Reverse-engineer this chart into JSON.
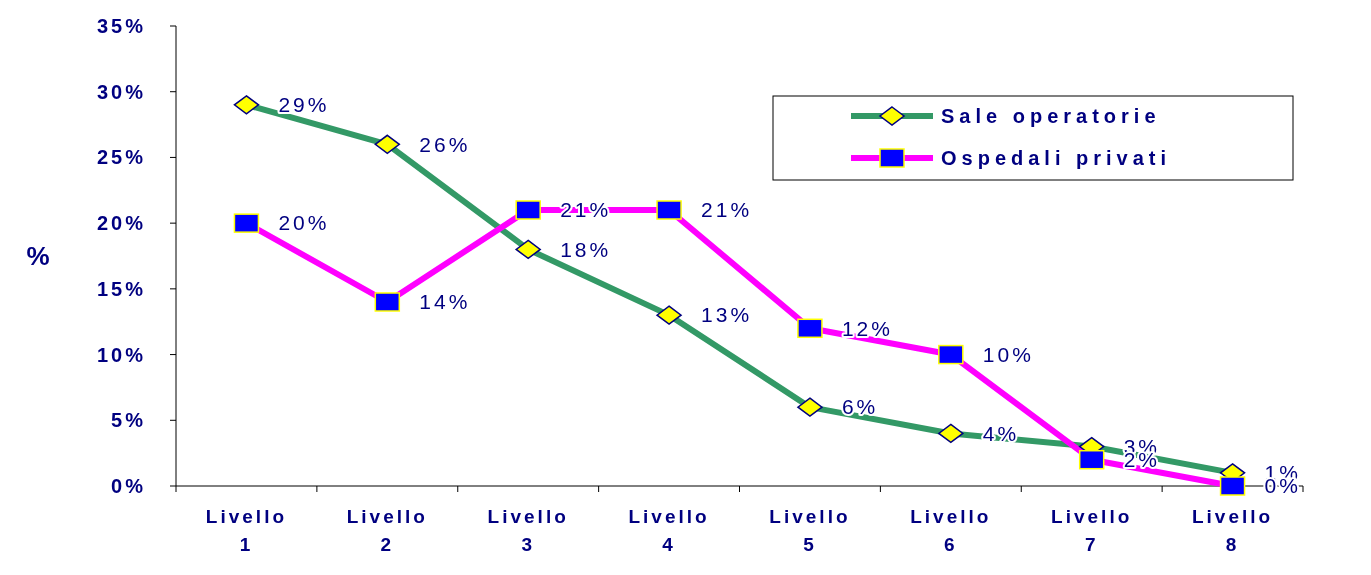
{
  "chart_data": {
    "type": "line",
    "ylabel": "%",
    "categories": [
      "Livello 1",
      "Livello 2",
      "Livello 3",
      "Livello 4",
      "Livello 5",
      "Livello 6",
      "Livello 7",
      "Livello 8"
    ],
    "series": [
      {
        "name": "Sale operatorie",
        "color": "#339966",
        "marker": "diamond",
        "values": [
          29,
          26,
          18,
          13,
          6,
          4,
          3,
          1
        ],
        "value_labels": [
          "29%",
          "26%",
          "18%",
          "13%",
          "6%",
          "4%",
          "3%",
          "1%"
        ]
      },
      {
        "name": "Ospedali privati",
        "color": "#ff00ff",
        "marker": "square",
        "values": [
          20,
          14,
          21,
          21,
          12,
          10,
          2,
          0
        ],
        "value_labels": [
          "20%",
          "14%",
          "21%",
          "21%",
          "12%",
          "10%",
          "2%",
          "0%"
        ]
      }
    ],
    "ylim": [
      0,
      35
    ],
    "yticks": [
      {
        "value": 0,
        "label": "0%"
      },
      {
        "value": 5,
        "label": "5%"
      },
      {
        "value": 10,
        "label": "10%"
      },
      {
        "value": 15,
        "label": "15%"
      },
      {
        "value": 20,
        "label": "20%"
      },
      {
        "value": 25,
        "label": "25%"
      },
      {
        "value": 30,
        "label": "30%"
      },
      {
        "value": 35,
        "label": "35%"
      }
    ],
    "legend": "top right",
    "grid": false
  }
}
